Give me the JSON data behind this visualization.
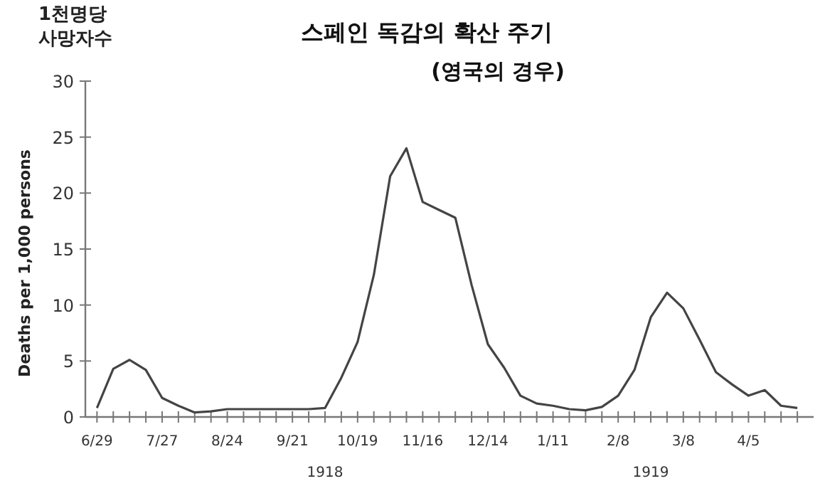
{
  "chart_data": {
    "type": "line",
    "title": "스페인 독감의 확산 주기",
    "subtitle": "(영국의 경우)",
    "ylabel": "Deaths per 1,000 persons",
    "annotations": [
      "1천명당 사망자수",
      "1918",
      "1919"
    ],
    "x": [
      "1918-06-29",
      "1918-07-06",
      "1918-07-13",
      "1918-07-20",
      "1918-07-27",
      "1918-08-03",
      "1918-08-10",
      "1918-08-17",
      "1918-08-24",
      "1918-08-31",
      "1918-09-07",
      "1918-09-14",
      "1918-09-21",
      "1918-09-28",
      "1918-10-05",
      "1918-10-12",
      "1918-10-19",
      "1918-10-26",
      "1918-11-02",
      "1918-11-09",
      "1918-11-16",
      "1918-11-23",
      "1918-11-30",
      "1918-12-07",
      "1918-12-14",
      "1918-12-21",
      "1918-12-28",
      "1919-01-04",
      "1919-01-11",
      "1919-01-18",
      "1919-01-25",
      "1919-02-01",
      "1919-02-08",
      "1919-02-15",
      "1919-02-22",
      "1919-03-01",
      "1919-03-08",
      "1919-03-15",
      "1919-03-22",
      "1919-03-29",
      "1919-04-05",
      "1919-04-12",
      "1919-04-19",
      "1919-04-26"
    ],
    "series": [
      {
        "color": "#444444",
        "values": [
          0.8,
          4.3,
          5.1,
          4.2,
          1.7,
          1.0,
          0.4,
          0.5,
          0.7,
          0.7,
          0.7,
          0.7,
          0.7,
          0.7,
          0.8,
          3.5,
          6.7,
          12.7,
          21.5,
          24,
          19.2,
          18.5,
          17.8,
          11.8,
          6.5,
          4.4,
          1.9,
          1.2,
          1.0,
          0.7,
          0.6,
          0.9,
          1.9,
          4.2,
          8.9,
          11.1,
          9.7,
          6.9,
          4.0,
          2.9,
          1.9,
          2.4,
          1.0,
          0.8
        ]
      }
    ],
    "xlim": [
      "1918-06-24",
      "1919-05-03"
    ],
    "xticks": [
      {
        "value": "1918-06-29",
        "label": "6/29"
      },
      {
        "value": "1918-07-06",
        "label": null
      },
      {
        "value": "1918-07-13",
        "label": null
      },
      {
        "value": "1918-07-20",
        "label": null
      },
      {
        "value": "1918-07-27",
        "label": "7/27"
      },
      {
        "value": "1918-08-03",
        "label": null
      },
      {
        "value": "1918-08-10",
        "label": null
      },
      {
        "value": "1918-08-17",
        "label": null
      },
      {
        "value": "1918-08-24",
        "label": "8/24"
      },
      {
        "value": "1918-08-31",
        "label": null
      },
      {
        "value": "1918-09-07",
        "label": null
      },
      {
        "value": "1918-09-14",
        "label": null
      },
      {
        "value": "1918-09-21",
        "label": "9/21"
      },
      {
        "value": "1918-09-28",
        "label": null
      },
      {
        "value": "1918-10-05",
        "label": null
      },
      {
        "value": "1918-10-12",
        "label": null
      },
      {
        "value": "1918-10-19",
        "label": "10/19"
      },
      {
        "value": "1918-10-26",
        "label": null
      },
      {
        "value": "1918-11-02",
        "label": null
      },
      {
        "value": "1918-11-09",
        "label": null
      },
      {
        "value": "1918-11-16",
        "label": "11/16"
      },
      {
        "value": "1918-11-23",
        "label": null
      },
      {
        "value": "1918-11-30",
        "label": null
      },
      {
        "value": "1918-12-07",
        "label": null
      },
      {
        "value": "1918-12-14",
        "label": "12/14"
      },
      {
        "value": "1918-12-21",
        "label": null
      },
      {
        "value": "1918-12-28",
        "label": null
      },
      {
        "value": "1919-01-04",
        "label": null
      },
      {
        "value": "1919-01-11",
        "label": "1/11"
      },
      {
        "value": "1919-01-18",
        "label": null
      },
      {
        "value": "1919-01-25",
        "label": null
      },
      {
        "value": "1919-02-01",
        "label": null
      },
      {
        "value": "1919-02-08",
        "label": "2/8"
      },
      {
        "value": "1919-02-15",
        "label": null
      },
      {
        "value": "1919-02-22",
        "label": null
      },
      {
        "value": "1919-03-01",
        "label": null
      },
      {
        "value": "1919-03-08",
        "label": "3/8"
      },
      {
        "value": "1919-03-15",
        "label": null
      },
      {
        "value": "1919-03-22",
        "label": null
      },
      {
        "value": "1919-03-29",
        "label": null
      },
      {
        "value": "1919-04-05",
        "label": "4/5"
      },
      {
        "value": "1919-04-12",
        "label": null
      },
      {
        "value": "1919-04-19",
        "label": null
      },
      {
        "value": "1919-04-26",
        "label": null
      }
    ],
    "ylim": [
      0,
      30
    ],
    "yticks": [
      0,
      5,
      10,
      15,
      20,
      25,
      30
    ],
    "marker": "none",
    "line_style": "solid"
  }
}
